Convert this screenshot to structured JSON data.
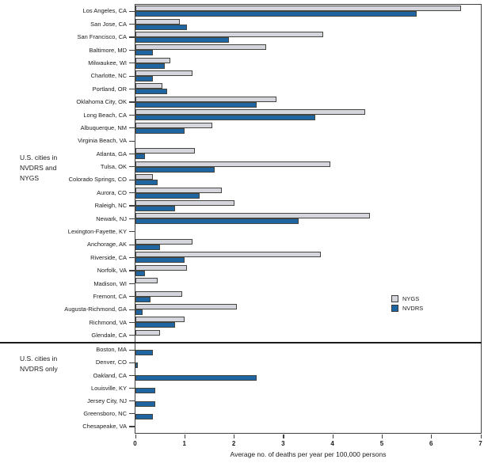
{
  "chart_data": {
    "type": "bar",
    "orientation": "horizontal",
    "title": "",
    "xlabel": "Average no. of deaths per year per 100,000 persons",
    "xlim": [
      0,
      7
    ],
    "xticks": [
      0,
      1,
      2,
      3,
      4,
      5,
      6,
      7
    ],
    "grid": false,
    "legend_position": "right-middle",
    "series_names": [
      "NYGS",
      "NVDRS"
    ],
    "groups": [
      {
        "label": "U.S. cities in NVDRS and NYGS",
        "label_lines": [
          "U.S. cities in",
          "NVDRS and",
          "NYGS"
        ],
        "cities": [
          {
            "name": "Los Angeles, CA",
            "nygs": 6.6,
            "nvdrs": 5.7
          },
          {
            "name": "San Jose, CA",
            "nygs": 0.9,
            "nvdrs": 1.05
          },
          {
            "name": "San Francisco, CA",
            "nygs": 3.8,
            "nvdrs": 1.9
          },
          {
            "name": "Baltimore, MD",
            "nygs": 2.65,
            "nvdrs": 0.35
          },
          {
            "name": "Milwaukee, WI",
            "nygs": 0.7,
            "nvdrs": 0.6
          },
          {
            "name": "Charlotte, NC",
            "nygs": 1.15,
            "nvdrs": 0.35
          },
          {
            "name": "Portland, OR",
            "nygs": 0.55,
            "nvdrs": 0.65
          },
          {
            "name": "Oklahoma City, OK",
            "nygs": 2.85,
            "nvdrs": 2.45
          },
          {
            "name": "Long Beach, CA",
            "nygs": 4.65,
            "nvdrs": 3.65
          },
          {
            "name": "Albuquerque, NM",
            "nygs": 1.55,
            "nvdrs": 1.0
          },
          {
            "name": "Virginia Beach, VA",
            "nygs": 0,
            "nvdrs": 0
          },
          {
            "name": "Atlanta, GA",
            "nygs": 1.2,
            "nvdrs": 0.2
          },
          {
            "name": "Tulsa, OK",
            "nygs": 3.95,
            "nvdrs": 1.6
          },
          {
            "name": "Colorado Springs, CO",
            "nygs": 0.35,
            "nvdrs": 0.45
          },
          {
            "name": "Aurora, CO",
            "nygs": 1.75,
            "nvdrs": 1.3
          },
          {
            "name": "Raleigh, NC",
            "nygs": 2.0,
            "nvdrs": 0.8
          },
          {
            "name": "Newark, NJ",
            "nygs": 4.75,
            "nvdrs": 3.3
          },
          {
            "name": "Lexington-Fayette, KY",
            "nygs": 0,
            "nvdrs": 0
          },
          {
            "name": "Anchorage, AK",
            "nygs": 1.15,
            "nvdrs": 0.5
          },
          {
            "name": "Riverside, CA",
            "nygs": 3.75,
            "nvdrs": 1.0
          },
          {
            "name": "Norfolk, VA",
            "nygs": 1.05,
            "nvdrs": 0.2
          },
          {
            "name": "Madison, WI",
            "nygs": 0.45,
            "nvdrs": 0
          },
          {
            "name": "Fremont, CA",
            "nygs": 0.95,
            "nvdrs": 0.3
          },
          {
            "name": "Augusta-Richmond, GA",
            "nygs": 2.05,
            "nvdrs": 0.15
          },
          {
            "name": "Richmond, VA",
            "nygs": 1.0,
            "nvdrs": 0.8
          },
          {
            "name": "Glendale, CA",
            "nygs": 0.5,
            "nvdrs": 0
          }
        ]
      },
      {
        "label": "U.S. cities in NVDRS only",
        "label_lines": [
          "U.S. cities in",
          "NVDRS only"
        ],
        "cities": [
          {
            "name": "Boston, MA",
            "nygs": null,
            "nvdrs": 0.35
          },
          {
            "name": "Denver, CO",
            "nygs": null,
            "nvdrs": 0.05
          },
          {
            "name": "Oakland, CA",
            "nygs": null,
            "nvdrs": 2.45
          },
          {
            "name": "Louisville, KY",
            "nygs": null,
            "nvdrs": 0.4
          },
          {
            "name": "Jersey City, NJ",
            "nygs": null,
            "nvdrs": 0.4
          },
          {
            "name": "Greensboro, NC",
            "nygs": null,
            "nvdrs": 0.35
          },
          {
            "name": "Chesapeake, VA",
            "nygs": null,
            "nvdrs": 0
          }
        ]
      }
    ]
  },
  "legend": {
    "items": [
      {
        "label": "NYGS",
        "color": "#d5d5dd"
      },
      {
        "label": "NVDRS",
        "color": "#1f65a1"
      }
    ]
  },
  "colors": {
    "nygs_fill": "#d5d5dd",
    "nvdrs_fill": "#1f65a1",
    "bar_border": "#454540",
    "axis": "#404040",
    "text": "#1a1a1a"
  }
}
